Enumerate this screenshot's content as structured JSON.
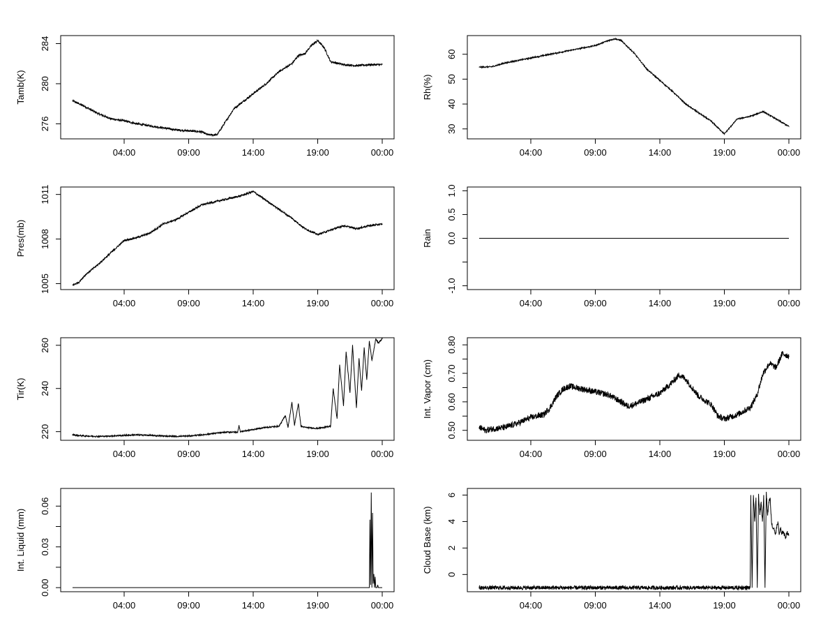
{
  "chart_data": [
    {
      "type": "line",
      "ylabel": "Tamb(K)",
      "xticks": [
        "04:00",
        "09:00",
        "14:00",
        "19:00",
        "00:00"
      ],
      "yticks": [
        276,
        280,
        284
      ],
      "ylim": [
        274.5,
        284.8
      ],
      "x_hours": [
        0,
        0.5,
        1,
        2,
        3,
        4,
        5,
        6,
        7,
        8,
        9,
        10,
        10.5,
        11.2,
        12,
        12.5,
        13,
        14,
        15,
        16,
        17,
        17.5,
        18,
        18.5,
        19,
        19.5,
        20,
        21,
        22,
        23,
        24
      ],
      "values": [
        278.3,
        278.0,
        277.7,
        277.0,
        276.5,
        276.3,
        276.0,
        275.8,
        275.6,
        275.4,
        275.3,
        275.2,
        274.9,
        274.9,
        276.5,
        277.5,
        278.0,
        279.0,
        280.0,
        281.2,
        282.0,
        282.8,
        283.0,
        283.8,
        284.3,
        283.6,
        282.2,
        281.9,
        281.8,
        281.9,
        281.9
      ],
      "noise": 0.1
    },
    {
      "type": "line",
      "ylabel": "Rh(%)",
      "xticks": [
        "04:00",
        "09:00",
        "14:00",
        "19:00",
        "00:00"
      ],
      "yticks": [
        30,
        40,
        50,
        60
      ],
      "ylim": [
        26,
        67.5
      ],
      "x_hours": [
        0,
        1,
        2,
        3,
        4,
        5,
        6,
        7,
        8,
        9,
        9.5,
        10,
        10.5,
        11,
        12,
        13,
        14,
        15,
        16,
        17,
        18,
        19,
        20,
        21,
        22,
        23,
        24
      ],
      "values": [
        54.8,
        55.0,
        56.5,
        57.5,
        58.5,
        59.5,
        60.5,
        61.5,
        62.5,
        63.5,
        64.5,
        65.5,
        66.2,
        65.5,
        60.5,
        54.0,
        49.5,
        45.0,
        40.0,
        36.5,
        33.0,
        28.0,
        34.0,
        35.0,
        37.0,
        34.0,
        31.0
      ],
      "noise": 0.25
    },
    {
      "type": "line",
      "ylabel": "Pres(mb)",
      "xticks": [
        "04:00",
        "09:00",
        "14:00",
        "19:00",
        "00:00"
      ],
      "yticks": [
        1005,
        1008,
        1011
      ],
      "ylim": [
        1004.6,
        1011.5
      ],
      "x_hours": [
        0,
        0.5,
        1,
        2,
        3,
        4,
        5,
        6,
        7,
        8,
        9,
        10,
        11,
        12,
        13,
        14,
        15,
        16,
        17,
        18,
        19,
        20,
        21,
        22,
        23,
        24
      ],
      "values": [
        1004.9,
        1005.1,
        1005.6,
        1006.3,
        1007.1,
        1007.9,
        1008.1,
        1008.4,
        1009.0,
        1009.3,
        1009.8,
        1010.3,
        1010.5,
        1010.7,
        1010.9,
        1011.2,
        1010.6,
        1010.0,
        1009.4,
        1008.7,
        1008.3,
        1008.6,
        1008.9,
        1008.7,
        1008.9,
        1009.0
      ],
      "noise": 0.06
    },
    {
      "type": "line",
      "ylabel": "Rain",
      "xticks": [
        "04:00",
        "09:00",
        "14:00",
        "19:00",
        "00:00"
      ],
      "yticks": [
        -1.0,
        -0.5,
        0.0,
        0.5,
        1.0
      ],
      "ytick_labels": [
        "-1.0",
        "",
        "0.0",
        "0.5",
        "1.0"
      ],
      "ylim": [
        -1.08,
        1.08
      ],
      "x_hours": [
        0,
        24
      ],
      "values": [
        0,
        0
      ],
      "noise": 0
    },
    {
      "type": "line",
      "ylabel": "Tir(K)",
      "xticks": [
        "04:00",
        "09:00",
        "14:00",
        "19:00",
        "00:00"
      ],
      "yticks": [
        220,
        240,
        260
      ],
      "ylim": [
        216,
        263.5
      ],
      "x_hours": [
        0,
        1,
        2,
        3,
        4,
        5,
        6,
        7,
        8,
        9,
        10,
        11,
        12,
        12.8,
        12.9,
        13,
        14,
        15,
        16,
        16.5,
        16.7,
        17,
        17.2,
        17.5,
        17.7,
        18,
        19,
        20,
        20.2,
        20.5,
        20.7,
        21,
        21.2,
        21.5,
        21.7,
        22,
        22.2,
        22.4,
        22.6,
        22.8,
        23,
        23.2,
        23.5,
        23.7,
        24
      ],
      "values": [
        218.5,
        218.0,
        217.8,
        218.0,
        218.3,
        218.5,
        218.3,
        218.0,
        217.8,
        218.0,
        218.5,
        219.2,
        219.8,
        219.8,
        223,
        220.0,
        221.0,
        222.0,
        222.5,
        227.5,
        222,
        233.5,
        223,
        233,
        222.5,
        222.0,
        221.5,
        222.5,
        240,
        226,
        251,
        232,
        257,
        238,
        260,
        231,
        254,
        239,
        259,
        244,
        262,
        253,
        263,
        261,
        263
      ],
      "noise": 0.3
    },
    {
      "type": "line",
      "ylabel": "Int. Vapor (cm)",
      "xticks": [
        "04:00",
        "09:00",
        "14:00",
        "19:00",
        "00:00"
      ],
      "yticks": [
        0.5,
        0.55,
        0.6,
        0.65,
        0.7,
        0.75,
        0.8
      ],
      "ytick_labels": [
        "0.50",
        "",
        "0.60",
        "",
        "0.70",
        "",
        "0.80"
      ],
      "ylim": [
        0.465,
        0.825
      ],
      "x_hours": [
        0,
        0.5,
        1,
        2,
        3,
        4,
        5,
        5.5,
        6,
        6.5,
        7,
        8,
        9,
        10,
        11,
        11.5,
        12,
        13,
        14,
        14.5,
        15,
        15.5,
        16,
        17,
        18,
        18.5,
        19,
        20,
        21,
        21.5,
        22,
        22.5,
        23,
        23.5,
        24
      ],
      "values": [
        0.51,
        0.5,
        0.505,
        0.51,
        0.525,
        0.545,
        0.555,
        0.58,
        0.62,
        0.645,
        0.655,
        0.645,
        0.635,
        0.625,
        0.6,
        0.585,
        0.59,
        0.61,
        0.63,
        0.65,
        0.67,
        0.695,
        0.68,
        0.62,
        0.59,
        0.55,
        0.54,
        0.555,
        0.58,
        0.62,
        0.7,
        0.735,
        0.72,
        0.77,
        0.76
      ],
      "noise": 0.011
    },
    {
      "type": "line",
      "ylabel": "Int. Liquid (mm)",
      "xticks": [
        "04:00",
        "09:00",
        "14:00",
        "19:00",
        "00:00"
      ],
      "yticks": [
        0.0,
        0.015,
        0.03,
        0.045,
        0.06
      ],
      "ytick_labels": [
        "0.00",
        "",
        "0.03",
        "",
        "0.06"
      ],
      "ylim": [
        -0.003,
        0.073
      ],
      "x_hours": [
        0,
        23.0,
        23.05,
        23.1,
        23.15,
        23.2,
        23.25,
        23.3,
        23.35,
        23.4,
        23.45,
        23.5,
        23.55,
        23.6,
        23.65,
        23.7,
        23.75,
        23.8,
        24
      ],
      "values": [
        0,
        0,
        0.05,
        0.002,
        0.07,
        0,
        0.055,
        0.003,
        0.01,
        0,
        0.008,
        0,
        0,
        0,
        0.002,
        0,
        0,
        0,
        0
      ],
      "noise": 0
    },
    {
      "type": "line",
      "ylabel": "Cloud Base (km)",
      "xticks": [
        "04:00",
        "09:00",
        "14:00",
        "19:00",
        "00:00"
      ],
      "yticks": [
        0,
        2,
        4,
        6
      ],
      "ylim": [
        -1.3,
        6.5
      ],
      "x_hours": [
        0,
        21.0,
        21.05,
        21.15,
        21.25,
        21.35,
        21.45,
        21.55,
        21.65,
        21.75,
        21.85,
        21.95,
        22.05,
        22.15,
        22.25,
        22.35,
        22.45,
        22.55,
        22.65,
        22.75,
        22.85,
        22.95,
        23.05,
        23.15,
        23.25,
        23.35,
        23.45,
        23.55,
        23.65,
        23.75,
        23.85,
        23.95,
        24
      ],
      "values": [
        -1,
        -1,
        6.0,
        -1,
        6.0,
        4.0,
        5.8,
        -1,
        6.0,
        4.5,
        5.5,
        4.0,
        6.0,
        -1,
        6.2,
        4.5,
        5.5,
        5.8,
        4.0,
        3.5,
        3.5,
        3.0,
        3.5,
        4.0,
        3.0,
        3.5,
        3.0,
        3.3,
        3.0,
        2.8,
        3.2,
        3.0,
        3.0
      ],
      "noise": 0.15
    }
  ]
}
